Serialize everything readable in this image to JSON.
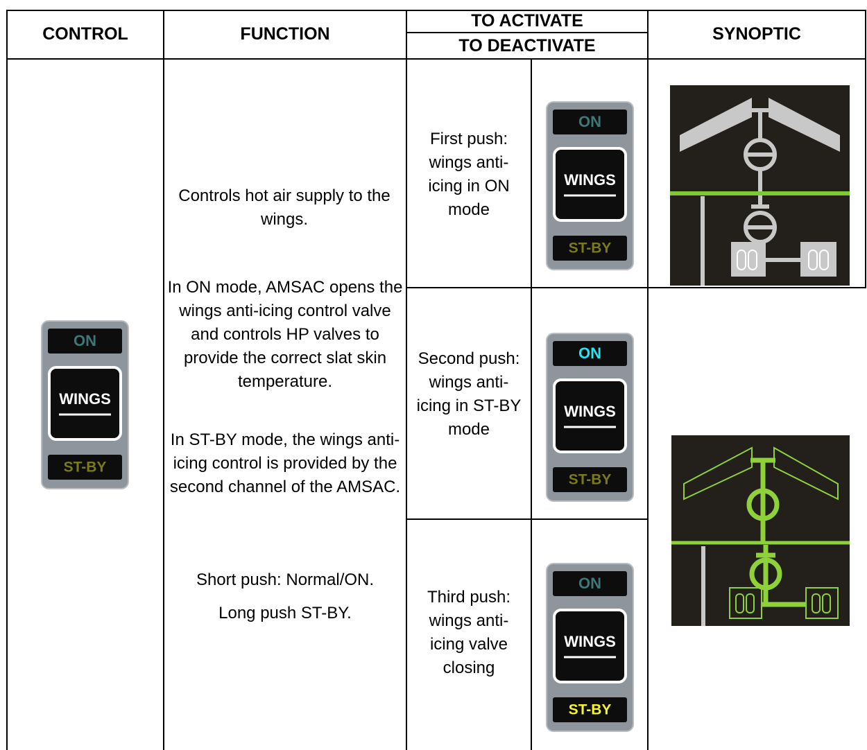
{
  "table": {
    "headers": {
      "control": "CONTROL",
      "function": "FUNCTION",
      "to_activate": "TO ACTIVATE",
      "to_deactivate": "TO DEACTIVATE",
      "synoptic": "SYNOPTIC"
    },
    "function": [
      "Controls hot air supply to the wings.",
      "In ON mode, AMSAC opens the wings anti-icing control valve and controls HP valves to provide the correct slat skin temperature.",
      "In ST-BY mode, the wings anti-icing control is provided by the second channel of the AMSAC.",
      "Short push: Normal/ON.",
      "Long push ST-BY."
    ],
    "actions": [
      "First push: wings anti-icing in ON mode",
      "Second push: wings anti-icing in ST-BY mode",
      "Third push: wings anti-icing valve closing"
    ],
    "panel_labels": {
      "on": "ON",
      "wings": "WINGS",
      "stby": "ST-BY"
    }
  }
}
